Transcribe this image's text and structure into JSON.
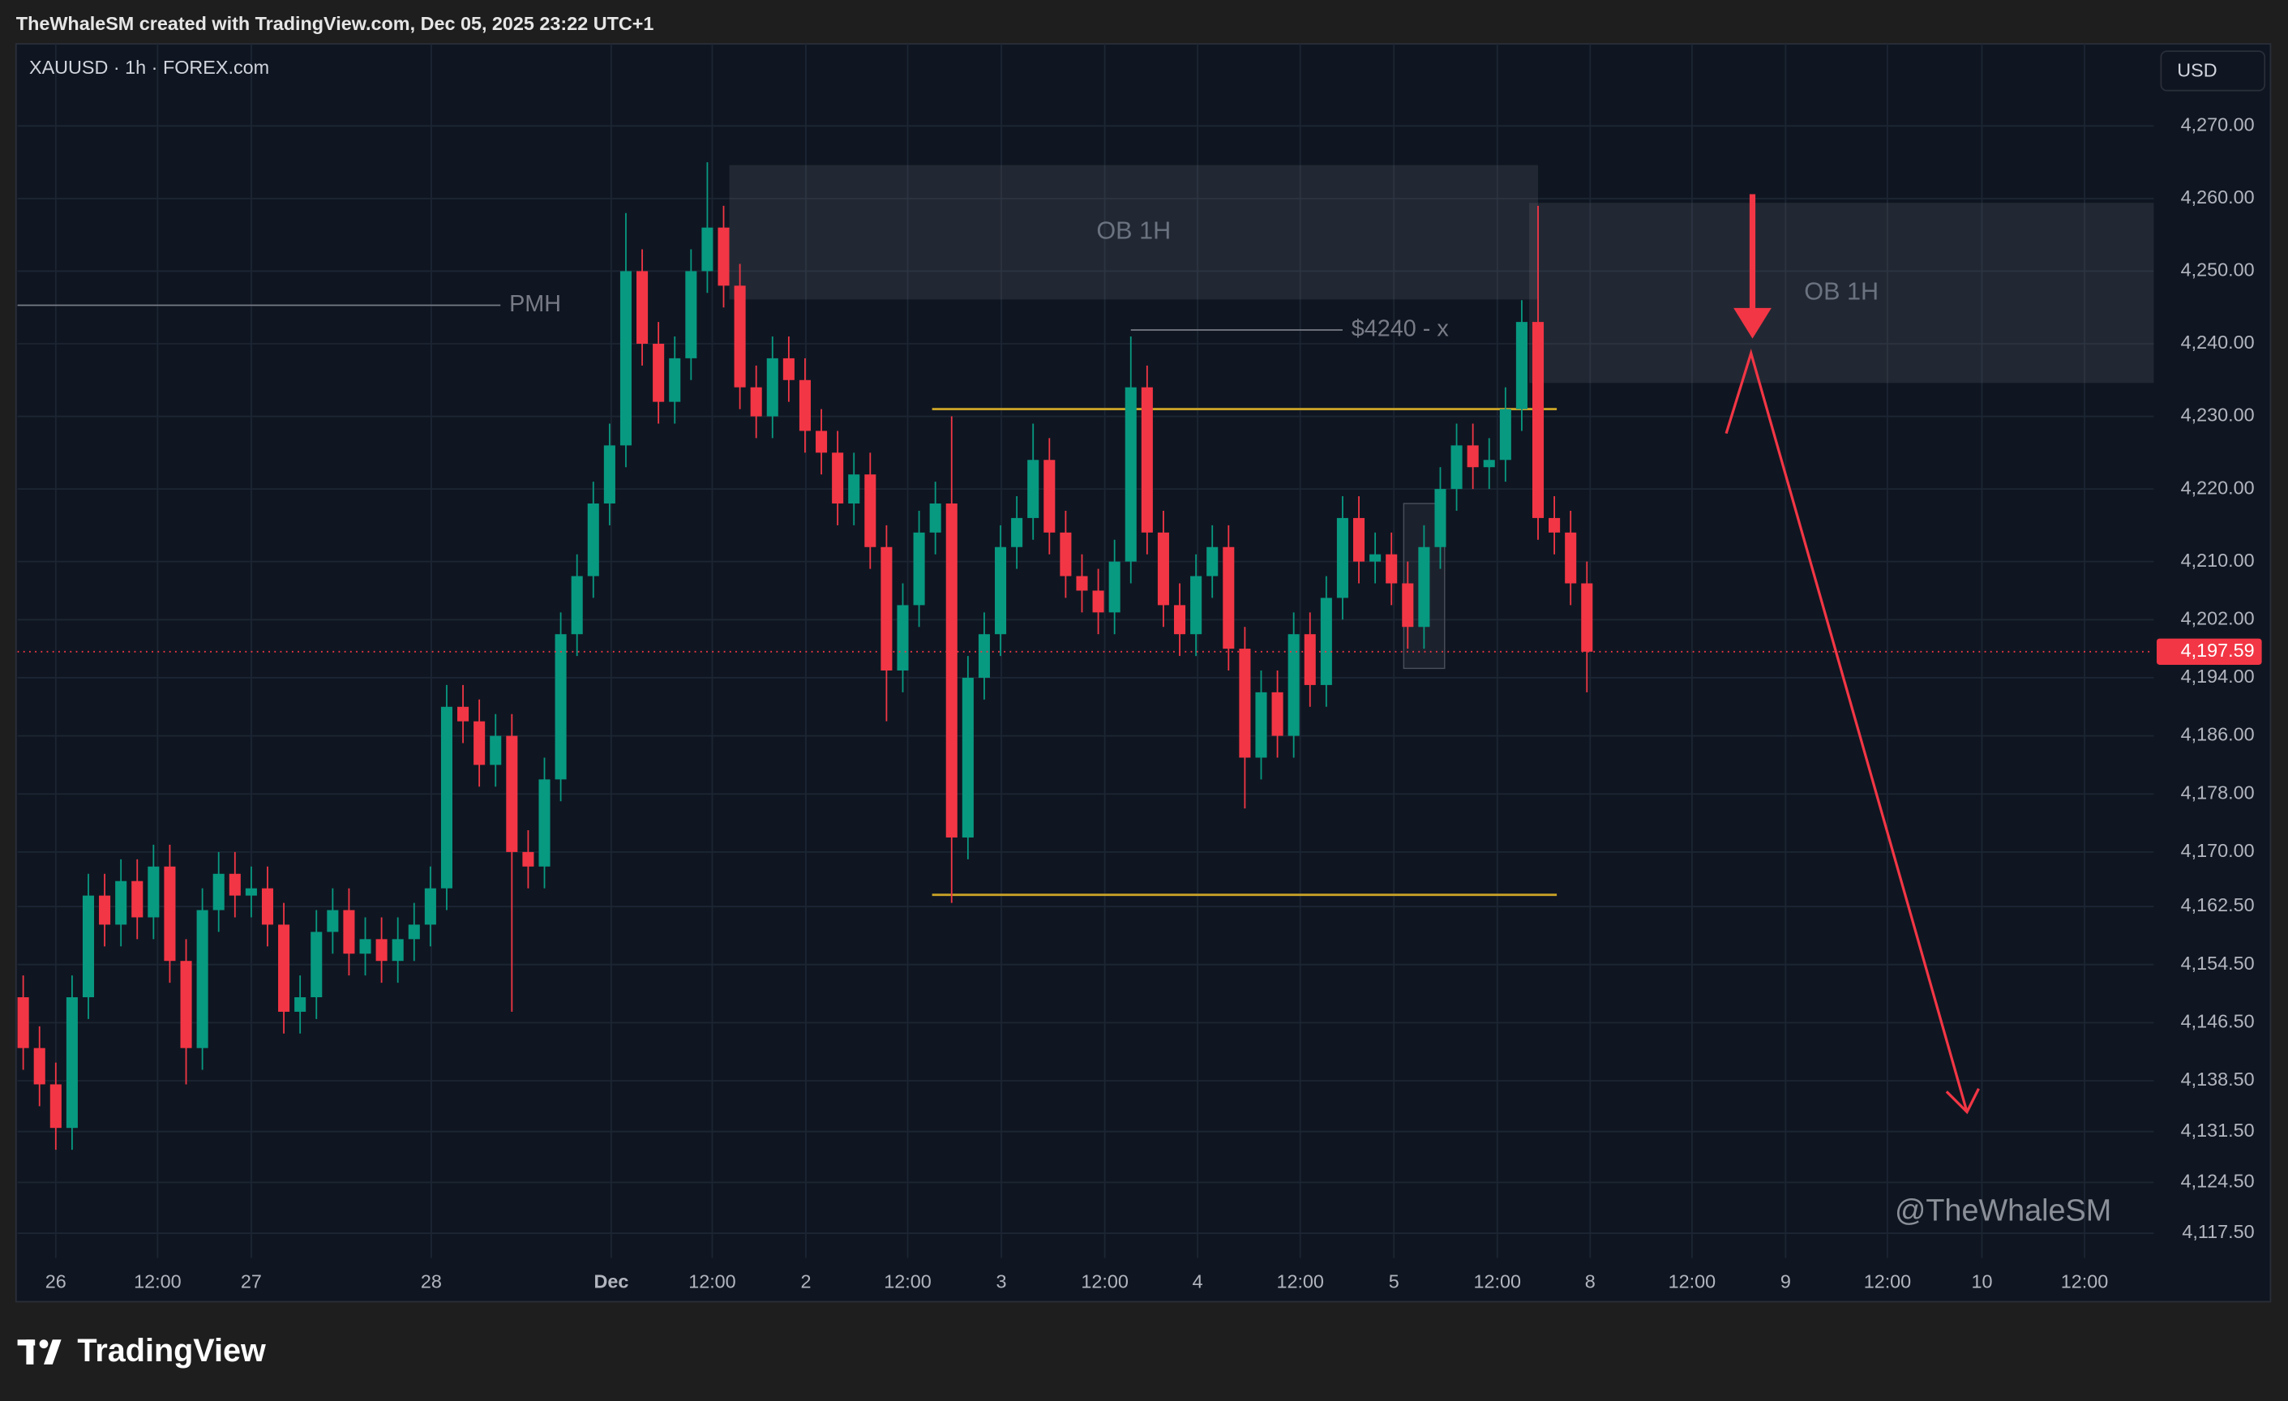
{
  "header": {
    "credit": "TheWhaleSM created with TradingView.com, Dec 05, 2025 23:22 UTC+1"
  },
  "chart_data": {
    "type": "candlestick",
    "symbol": "XAUUSD · 1h · FOREX.com",
    "currency": "USD",
    "up_color": "#089981",
    "down_color": "#f23645",
    "grid": true,
    "x": [
      -4,
      -2,
      0,
      2,
      4,
      6,
      8,
      10,
      12,
      14,
      16,
      18,
      20,
      22,
      24,
      26,
      28,
      30,
      32,
      34,
      36,
      38,
      40,
      42,
      44,
      46,
      48,
      50,
      52,
      54,
      56,
      58,
      60,
      62,
      64,
      66,
      68,
      70,
      72,
      74,
      76,
      78,
      80,
      82,
      84,
      86,
      88,
      90,
      92,
      94,
      96,
      98,
      100,
      102,
      104,
      106,
      108,
      110,
      112,
      114,
      116,
      118,
      120,
      122,
      124,
      126,
      128,
      130,
      132,
      134,
      136,
      138,
      140,
      142,
      144,
      146,
      148,
      150,
      152,
      154,
      156,
      158,
      160,
      162,
      164,
      166,
      168,
      170,
      172,
      174,
      176,
      178,
      180,
      182,
      184,
      186,
      188
    ],
    "open": [
      4150,
      4143,
      4138,
      4132,
      4150,
      4164,
      4160,
      4166,
      4161,
      4168,
      4155,
      4143,
      4162,
      4167,
      4164,
      4165,
      4160,
      4148,
      4150,
      4159,
      4162,
      4156,
      4158,
      4155,
      4158,
      4160,
      4165,
      4190,
      4188,
      4182,
      4186,
      4170,
      4168,
      4180,
      4200,
      4208,
      4218,
      4226,
      4250,
      4240,
      4232,
      4238,
      4250,
      4256,
      4248,
      4234,
      4230,
      4238,
      4235,
      4228,
      4225,
      4218,
      4222,
      4212,
      4195,
      4204,
      4214,
      4218,
      4172,
      4194,
      4200,
      4212,
      4216,
      4224,
      4214,
      4208,
      4206,
      4203,
      4210,
      4234,
      4214,
      4204,
      4200,
      4208,
      4212,
      4198,
      4183,
      4192,
      4186,
      4200,
      4193,
      4205,
      4216,
      4210,
      4211,
      4207,
      4201,
      4212,
      4220,
      4226,
      4223,
      4224,
      4231,
      4243,
      4216,
      4214,
      4207
    ],
    "high": [
      4153,
      4146,
      4141,
      4153,
      4167,
      4167,
      4169,
      4169,
      4171,
      4171,
      4158,
      4165,
      4170,
      4170,
      4168,
      4168,
      4163,
      4153,
      4162,
      4165,
      4165,
      4161,
      4161,
      4161,
      4163,
      4168,
      4193,
      4193,
      4191,
      4189,
      4189,
      4173,
      4183,
      4203,
      4211,
      4221,
      4229,
      4258,
      4253,
      4243,
      4241,
      4253,
      4265,
      4259,
      4251,
      4237,
      4241,
      4241,
      4238,
      4231,
      4228,
      4225,
      4225,
      4215,
      4207,
      4217,
      4221,
      4230,
      4197,
      4203,
      4215,
      4219,
      4229,
      4227,
      4217,
      4211,
      4209,
      4213,
      4241,
      4237,
      4217,
      4207,
      4211,
      4215,
      4215,
      4201,
      4195,
      4195,
      4203,
      4203,
      4208,
      4219,
      4219,
      4214,
      4214,
      4210,
      4215,
      4223,
      4229,
      4229,
      4227,
      4234,
      4246,
      4259,
      4219,
      4217,
      4210
    ],
    "low": [
      4140,
      4135,
      4129,
      4129,
      4147,
      4157,
      4157,
      4158,
      4158,
      4152,
      4138,
      4140,
      4159,
      4161,
      4161,
      4157,
      4145,
      4145,
      4147,
      4156,
      4153,
      4153,
      4152,
      4152,
      4155,
      4157,
      4162,
      4185,
      4179,
      4179,
      4148,
      4165,
      4165,
      4177,
      4197,
      4205,
      4215,
      4223,
      4237,
      4229,
      4229,
      4235,
      4247,
      4245,
      4231,
      4227,
      4227,
      4232,
      4225,
      4222,
      4215,
      4215,
      4209,
      4188,
      4192,
      4201,
      4211,
      4163,
      4169,
      4191,
      4197,
      4209,
      4213,
      4211,
      4205,
      4203,
      4200,
      4200,
      4207,
      4211,
      4201,
      4197,
      4197,
      4205,
      4195,
      4176,
      4180,
      4183,
      4183,
      4190,
      4190,
      4202,
      4207,
      4207,
      4204,
      4198,
      4198,
      4209,
      4217,
      4220,
      4220,
      4221,
      4228,
      4213,
      4211,
      4204,
      4192
    ],
    "close": [
      4143,
      4138,
      4132,
      4150,
      4164,
      4160,
      4166,
      4161,
      4168,
      4155,
      4143,
      4162,
      4167,
      4164,
      4165,
      4160,
      4148,
      4150,
      4159,
      4162,
      4156,
      4158,
      4155,
      4158,
      4160,
      4165,
      4190,
      4188,
      4182,
      4186,
      4170,
      4168,
      4180,
      4200,
      4208,
      4218,
      4226,
      4250,
      4240,
      4232,
      4238,
      4250,
      4256,
      4248,
      4234,
      4230,
      4238,
      4235,
      4228,
      4225,
      4218,
      4222,
      4212,
      4195,
      4204,
      4214,
      4218,
      4172,
      4194,
      4200,
      4212,
      4216,
      4224,
      4214,
      4208,
      4206,
      4203,
      4210,
      4234,
      4214,
      4204,
      4200,
      4208,
      4212,
      4198,
      4183,
      4192,
      4186,
      4200,
      4193,
      4205,
      4216,
      4210,
      4211,
      4207,
      4201,
      4212,
      4220,
      4226,
      4223,
      4224,
      4231,
      4243,
      4216,
      4214,
      4207,
      4197.59
    ],
    "last_price": {
      "value": 4197.59,
      "label": "4,197.59"
    },
    "xlim": [
      -4.7,
      257.6
    ],
    "ylim": [
      4114.1,
      4281.3
    ],
    "yticks": [
      {
        "value": 4270,
        "label": "4,270.00"
      },
      {
        "value": 4260,
        "label": "4,260.00"
      },
      {
        "value": 4250,
        "label": "4,250.00"
      },
      {
        "value": 4240,
        "label": "4,240.00"
      },
      {
        "value": 4230,
        "label": "4,230.00"
      },
      {
        "value": 4220,
        "label": "4,220.00"
      },
      {
        "value": 4210,
        "label": "4,210.00"
      },
      {
        "value": 4202,
        "label": "4,202.00"
      },
      {
        "value": 4194,
        "label": "4,194.00"
      },
      {
        "value": 4186,
        "label": "4,186.00"
      },
      {
        "value": 4178,
        "label": "4,178.00"
      },
      {
        "value": 4170,
        "label": "4,170.00"
      },
      {
        "value": 4162.5,
        "label": "4,162.50"
      },
      {
        "value": 4154.5,
        "label": "4,154.50"
      },
      {
        "value": 4146.5,
        "label": "4,146.50"
      },
      {
        "value": 4138.5,
        "label": "4,138.50"
      },
      {
        "value": 4131.5,
        "label": "4,131.50"
      },
      {
        "value": 4124.5,
        "label": "4,124.50"
      },
      {
        "value": 4117.5,
        "label": "4,117.50"
      }
    ],
    "xticks": [
      {
        "value": 0,
        "label": "26"
      },
      {
        "value": 12.5,
        "label": "12:00"
      },
      {
        "value": 24,
        "label": "27"
      },
      {
        "value": 46.1,
        "label": "28"
      },
      {
        "value": 68.2,
        "label": "Dec"
      },
      {
        "value": 80.6,
        "label": "12:00"
      },
      {
        "value": 92.1,
        "label": "2"
      },
      {
        "value": 104.6,
        "label": "12:00"
      },
      {
        "value": 116.1,
        "label": "3"
      },
      {
        "value": 128.8,
        "label": "12:00"
      },
      {
        "value": 140.2,
        "label": "4"
      },
      {
        "value": 152.8,
        "label": "12:00"
      },
      {
        "value": 164.3,
        "label": "5"
      },
      {
        "value": 177,
        "label": "12:00"
      },
      {
        "value": 188.4,
        "label": "8"
      },
      {
        "value": 200.9,
        "label": "12:00"
      },
      {
        "value": 212.4,
        "label": "9"
      },
      {
        "value": 224.9,
        "label": "12:00"
      },
      {
        "value": 236.5,
        "label": "10"
      },
      {
        "value": 249.1,
        "label": "12:00"
      }
    ],
    "zones": [
      {
        "label": "OB 1H",
        "x": [
          82.7,
          182
        ],
        "y": [
          4246.1,
          4264.6
        ]
      },
      {
        "label": "OB 1H",
        "x": [
          180.9,
          257.6
        ],
        "y": [
          4234.6,
          4259.4
        ]
      }
    ],
    "levels": [
      {
        "label": "PMH",
        "value": 4245.3,
        "x": [
          -4.7,
          54.6
        ],
        "color": "#787b86"
      },
      {
        "value": 4231,
        "x": [
          107.6,
          184.3
        ],
        "color": "#c9a227"
      },
      {
        "value": 4164.1,
        "x": [
          107.6,
          184.3
        ],
        "color": "#c9a227"
      },
      {
        "label": "$4240 - x",
        "value": 4241.9,
        "x": [
          132,
          158
        ],
        "color": "#787b86"
      }
    ]
  },
  "watermark": "@TheWhaleSM",
  "footer": {
    "brand": "TradingView"
  }
}
